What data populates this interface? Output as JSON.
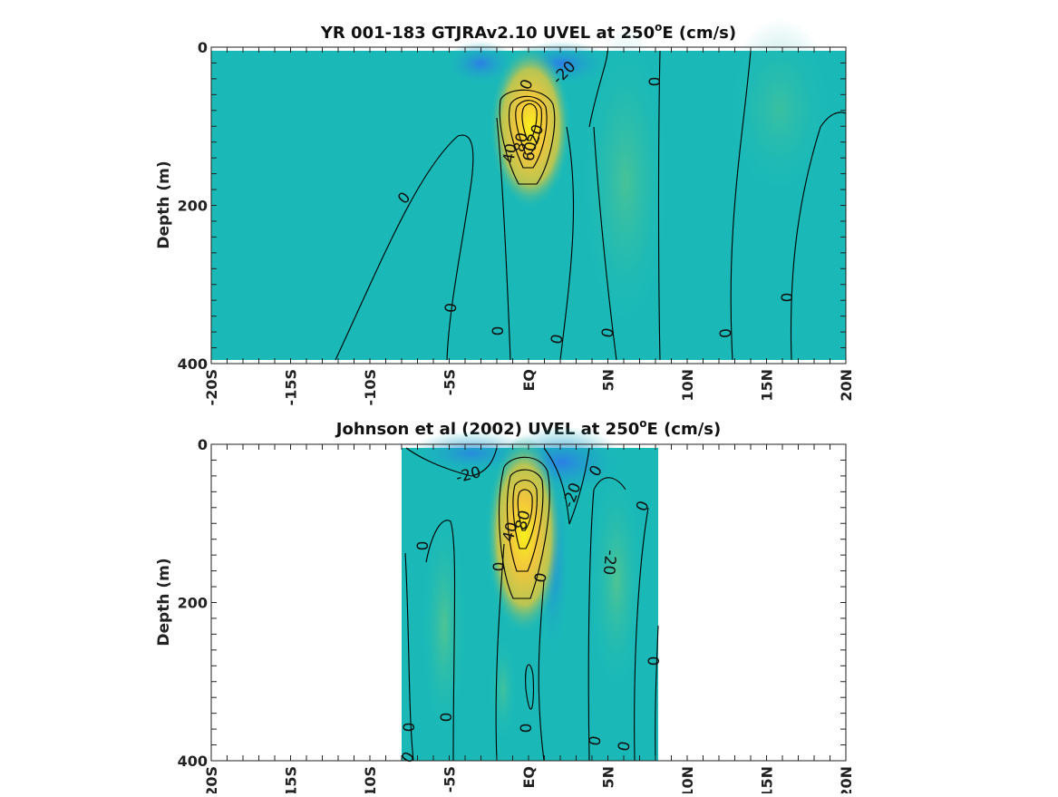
{
  "chart_data": [
    {
      "type": "heatmap",
      "title": "YR 001-183 GTJRAv2.10 UVEL at 250",
      "title_sup": "o",
      "title_suffix": "E (cm/s)",
      "xlabel": "",
      "ylabel": "Depth (m)",
      "xlim": [
        -20,
        20
      ],
      "ylim": [
        400,
        0
      ],
      "x_tick_labels": [
        "-20S",
        "-15S",
        "-10S",
        "-5S",
        "EQ",
        "5N",
        "10N",
        "15N",
        "20N"
      ],
      "x_ticks": [
        -20,
        -15,
        -10,
        -5,
        0,
        5,
        10,
        15,
        20
      ],
      "y_ticks": [
        0,
        200,
        400
      ],
      "y_tick_labels": [
        "0",
        "200",
        "400"
      ],
      "grid": false,
      "data_extent_x": [
        -20,
        20
      ],
      "data_extent_y": [
        5,
        395
      ],
      "colormap": "parula",
      "core": {
        "x": 0,
        "depth": 95,
        "max": 80
      },
      "contour_labels": [
        "0",
        "-20",
        "0",
        "40",
        "80",
        "60",
        "20",
        "0",
        "0",
        "0",
        "0",
        "0",
        "0",
        "0"
      ],
      "colors": {
        "background": "#1ab9b8",
        "westward": "#2b8ce0",
        "core": "#f4e02a"
      }
    },
    {
      "type": "heatmap",
      "title": "Johnson et al (2002) UVEL at 250",
      "title_sup": "o",
      "title_suffix": "E (cm/s)",
      "xlabel": "",
      "ylabel": "Depth (m)",
      "xlim": [
        -20,
        20
      ],
      "ylim": [
        400,
        0
      ],
      "x_tick_labels": [
        "-20S",
        "-15S",
        "-10S",
        "-5S",
        "EQ",
        "5N",
        "10N",
        "15N",
        "20N"
      ],
      "x_ticks": [
        -20,
        -15,
        -10,
        -5,
        0,
        5,
        10,
        15,
        20
      ],
      "y_ticks": [
        0,
        200,
        400
      ],
      "y_tick_labels": [
        "0",
        "200",
        "400"
      ],
      "grid": false,
      "data_extent_x": [
        -8,
        8
      ],
      "data_extent_y": [
        5,
        400
      ],
      "colormap": "parula",
      "core": {
        "x": 0,
        "depth": 80,
        "max": 80
      },
      "contour_labels": [
        "-20",
        "-20",
        "0",
        "0",
        "0",
        "80",
        "40",
        "0",
        "0",
        "-20",
        "0",
        "0",
        "0",
        "0",
        "0",
        "0",
        "0"
      ],
      "colors": {
        "background": "#1ab9b8",
        "westward": "#2b8ce0",
        "core": "#f4e02a"
      }
    }
  ]
}
